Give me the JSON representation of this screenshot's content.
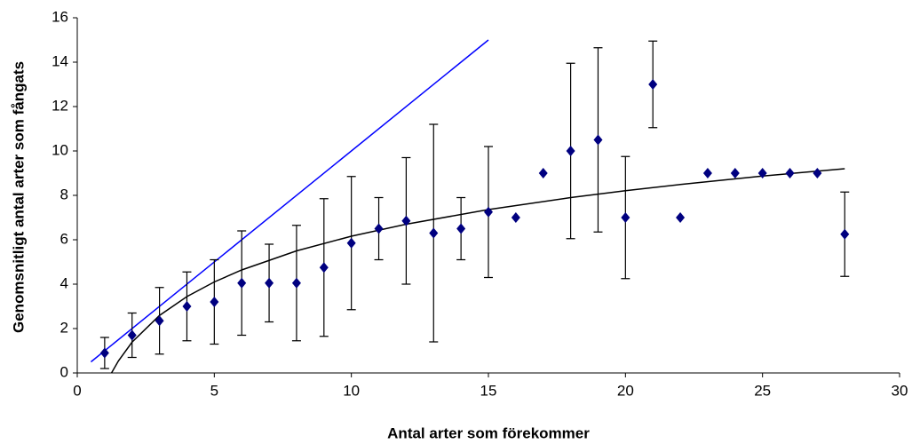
{
  "chart_data": {
    "type": "scatter",
    "xlabel": "Antal arter som förekommer",
    "ylabel": "Genomsnitligt antal arter som fångats",
    "xlim": [
      0,
      30
    ],
    "xticks": [
      0,
      5,
      10,
      15,
      20,
      25,
      30
    ],
    "ylim": [
      0,
      16
    ],
    "yticks": [
      0,
      2,
      4,
      6,
      8,
      10,
      12,
      14,
      16
    ],
    "series": [
      {
        "color": "#000080",
        "x": [
          1,
          2,
          3,
          4,
          5,
          6,
          7,
          8,
          9,
          10,
          11,
          12,
          13,
          14,
          15,
          16,
          17,
          18,
          19,
          20,
          21,
          22,
          23,
          24,
          25,
          26,
          27,
          28
        ],
        "values": [
          0.9,
          1.7,
          2.35,
          3.0,
          3.2,
          4.05,
          4.05,
          4.05,
          4.75,
          5.85,
          6.5,
          6.85,
          6.3,
          6.5,
          7.25,
          7.0,
          9.0,
          10.0,
          10.5,
          7.0,
          13.0,
          7.0,
          9.0,
          9.0,
          9.0,
          9.0,
          9.0,
          6.25
        ],
        "errors": [
          0.7,
          1.0,
          1.5,
          1.55,
          1.9,
          2.35,
          1.75,
          2.6,
          3.1,
          3.0,
          1.4,
          2.85,
          4.9,
          1.4,
          2.95,
          null,
          null,
          3.95,
          4.15,
          2.75,
          1.95,
          null,
          null,
          null,
          null,
          null,
          null,
          1.9
        ]
      }
    ],
    "lines": [
      {
        "color": "#0000ff",
        "x": [
          0.5,
          15
        ],
        "y": [
          0.5,
          15
        ]
      },
      {
        "color": "#000000",
        "x": [
          1.25,
          1.5,
          2,
          3,
          4,
          5,
          6,
          8,
          10,
          12,
          15,
          18,
          20,
          22,
          25,
          28
        ],
        "y": [
          0,
          0.54,
          1.39,
          2.59,
          3.44,
          4.1,
          4.64,
          5.5,
          6.16,
          6.7,
          7.36,
          7.9,
          8.21,
          8.49,
          8.87,
          9.2
        ]
      }
    ]
  }
}
